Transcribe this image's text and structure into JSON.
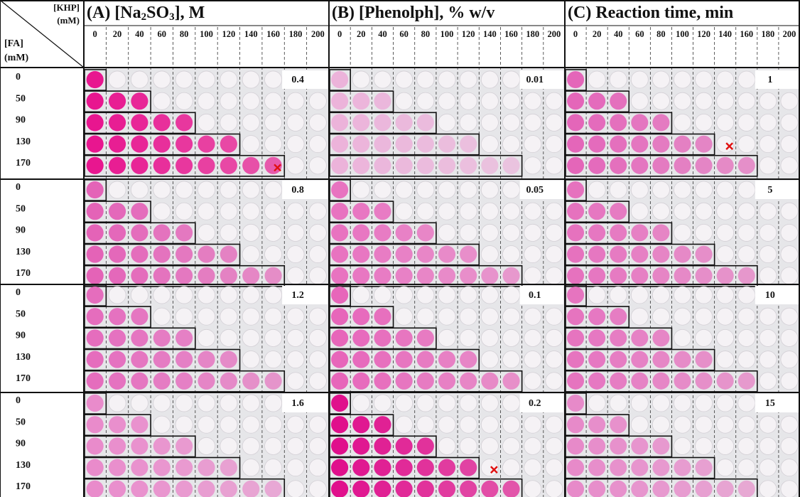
{
  "corner": {
    "col_label": "[KHP]",
    "col_unit": "(mM)",
    "row_label": "[FA]",
    "row_unit": "(mM)"
  },
  "fa_levels": [
    0,
    50,
    90,
    130,
    170
  ],
  "panels": [
    {
      "title": [
        "(A) [Na",
        "2",
        "SO",
        "3",
        "], M"
      ],
      "khp_levels": [
        0,
        20,
        40,
        60,
        80,
        100,
        120,
        140,
        160,
        180,
        200
      ],
      "block_values": [
        0.4,
        0.8,
        1.2,
        1.6
      ]
    },
    {
      "title": [
        "(B) [Phenolph], % w/v"
      ],
      "khp_levels": [
        0,
        20,
        40,
        60,
        80,
        100,
        120,
        140,
        160,
        180,
        200
      ],
      "block_values": [
        0.01,
        0.05,
        0.1,
        0.2
      ]
    },
    {
      "title": [
        "(C) Reaction time, min"
      ],
      "khp_levels": [
        0,
        20,
        40,
        60,
        80,
        100,
        120,
        140,
        160,
        180,
        200
      ],
      "block_values": [
        1,
        5,
        10,
        15
      ]
    }
  ]
}
